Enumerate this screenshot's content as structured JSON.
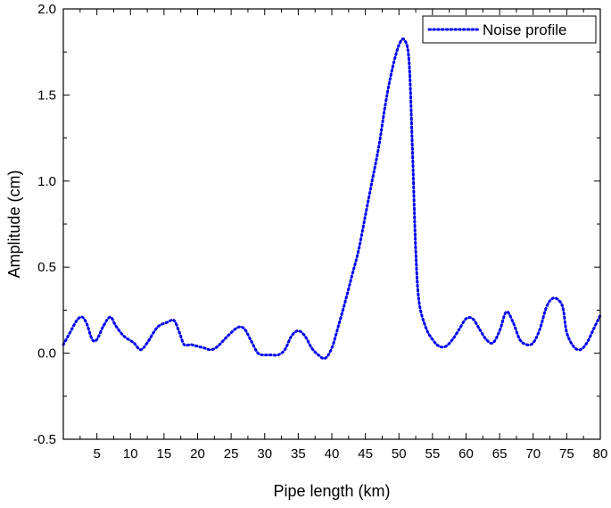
{
  "chart_data": {
    "type": "line",
    "title": "",
    "xlabel": "Pipe length (km)",
    "ylabel": "Amplitude (cm)",
    "xlim": [
      0,
      80
    ],
    "ylim": [
      -0.5,
      2.0
    ],
    "xticks": [
      5,
      10,
      15,
      20,
      25,
      30,
      35,
      40,
      45,
      50,
      55,
      60,
      65,
      70,
      75,
      80
    ],
    "xtick_labels": [
      "5",
      "10",
      "15",
      "20",
      "25",
      "30",
      "35",
      "40",
      "45",
      "50",
      "55",
      "60",
      "65",
      "70",
      "75",
      "80"
    ],
    "yticks": [
      -0.5,
      0.0,
      0.5,
      1.0,
      1.5,
      2.0
    ],
    "ytick_labels": [
      "-0.5",
      "0.0",
      "0.5",
      "1.0",
      "1.5",
      "2.0"
    ],
    "grid": false,
    "legend_position": "top-right",
    "series": [
      {
        "name": "Noise profile",
        "color": "#0000ee",
        "style": "dotted",
        "x": [
          0,
          1,
          2,
          2.8,
          3.5,
          4.3,
          5,
          6,
          7,
          7.8,
          9,
          10.5,
          11.5,
          12.5,
          14,
          15.5,
          16.5,
          17.3,
          18,
          19,
          20,
          21,
          22,
          23,
          24.5,
          26,
          27,
          28,
          29,
          30,
          31,
          32,
          33,
          34,
          35,
          36,
          37,
          38,
          39,
          40,
          41,
          42,
          43,
          44,
          45,
          46,
          47,
          48,
          49,
          50,
          50.8,
          51.5,
          52,
          52.5,
          53,
          54,
          55,
          56,
          57,
          58,
          59,
          60,
          61,
          62,
          63,
          64,
          65,
          66,
          67,
          68,
          69,
          70,
          71,
          72,
          73,
          74,
          74.5,
          75,
          76,
          77,
          78,
          79,
          80
        ],
        "y": [
          0.05,
          0.12,
          0.19,
          0.21,
          0.17,
          0.08,
          0.08,
          0.16,
          0.21,
          0.16,
          0.1,
          0.06,
          0.02,
          0.06,
          0.15,
          0.18,
          0.19,
          0.12,
          0.05,
          0.05,
          0.04,
          0.03,
          0.02,
          0.04,
          0.1,
          0.15,
          0.14,
          0.07,
          0.0,
          -0.01,
          -0.01,
          -0.01,
          0.02,
          0.1,
          0.13,
          0.1,
          0.03,
          -0.01,
          -0.03,
          0.03,
          0.16,
          0.3,
          0.45,
          0.6,
          0.8,
          1.0,
          1.2,
          1.45,
          1.65,
          1.79,
          1.82,
          1.7,
          1.2,
          0.6,
          0.3,
          0.15,
          0.08,
          0.04,
          0.04,
          0.08,
          0.14,
          0.2,
          0.2,
          0.14,
          0.08,
          0.06,
          0.13,
          0.24,
          0.18,
          0.08,
          0.05,
          0.06,
          0.14,
          0.27,
          0.32,
          0.3,
          0.25,
          0.12,
          0.04,
          0.02,
          0.06,
          0.14,
          0.22
        ]
      }
    ]
  }
}
